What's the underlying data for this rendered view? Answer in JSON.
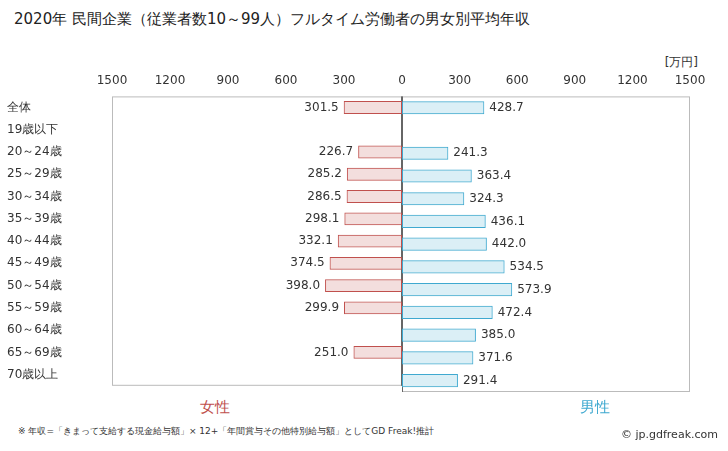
{
  "title": "2020年 民間企業（従業者数10～99人）フルタイム労働者の男女別平均年収",
  "unit_label": "[万円]",
  "note": "※ 年収=「きまって支給する現金給与額」× 12+「年間賞与その他特別給与額」としてGD Freak!推計",
  "credit": "© jp.gdfreak.com",
  "chart_data": [
    {
      "type": "bar",
      "orientation": "horizontal",
      "categories": [
        "全体",
        "19歳以下",
        "20～24歳",
        "25～29歳",
        "30～34歳",
        "35～39歳",
        "40～44歳",
        "45～49歳",
        "50～54歳",
        "55～59歳",
        "60～64歳",
        "65～69歳",
        "70歳以上"
      ],
      "series": [
        {
          "name": "女性",
          "color": "#c0504d",
          "values": [
            301.5,
            null,
            226.7,
            285.2,
            286.5,
            298.1,
            332.1,
            374.5,
            398.0,
            299.9,
            null,
            251.0,
            null
          ],
          "value_labels": [
            "301.5",
            null,
            "226.7",
            "285.2",
            "286.5",
            "298.1",
            "332.1",
            "374.5",
            "398.0",
            "299.9",
            null,
            "251.0",
            null
          ]
        }
      ],
      "xlim": [
        1500,
        0
      ],
      "xticks": [
        1500,
        1200,
        900,
        600,
        300,
        0
      ],
      "data_labels": true,
      "grid": false
    },
    {
      "type": "bar",
      "orientation": "horizontal",
      "categories": [
        "全体",
        "19歳以下",
        "20～24歳",
        "25～29歳",
        "30～34歳",
        "35～39歳",
        "40～44歳",
        "45～49歳",
        "50～54歳",
        "55～59歳",
        "60～64歳",
        "65～69歳",
        "70歳以上"
      ],
      "series": [
        {
          "name": "男性",
          "color": "#3fa9d0",
          "values": [
            428.7,
            null,
            241.3,
            363.4,
            324.3,
            436.1,
            442.0,
            534.5,
            573.9,
            472.4,
            385.0,
            371.6,
            291.4
          ],
          "value_labels": [
            "428.7",
            null,
            "241.3",
            "363.4",
            "324.3",
            "436.1",
            "442.0",
            "534.5",
            "573.9",
            "472.4",
            "385.0",
            "371.6",
            "291.4"
          ]
        }
      ],
      "xlim": [
        0,
        1500
      ],
      "xticks": [
        300,
        600,
        900,
        1200,
        1500
      ],
      "data_labels": true,
      "grid": false,
      "tick_labels": "x"
    }
  ]
}
